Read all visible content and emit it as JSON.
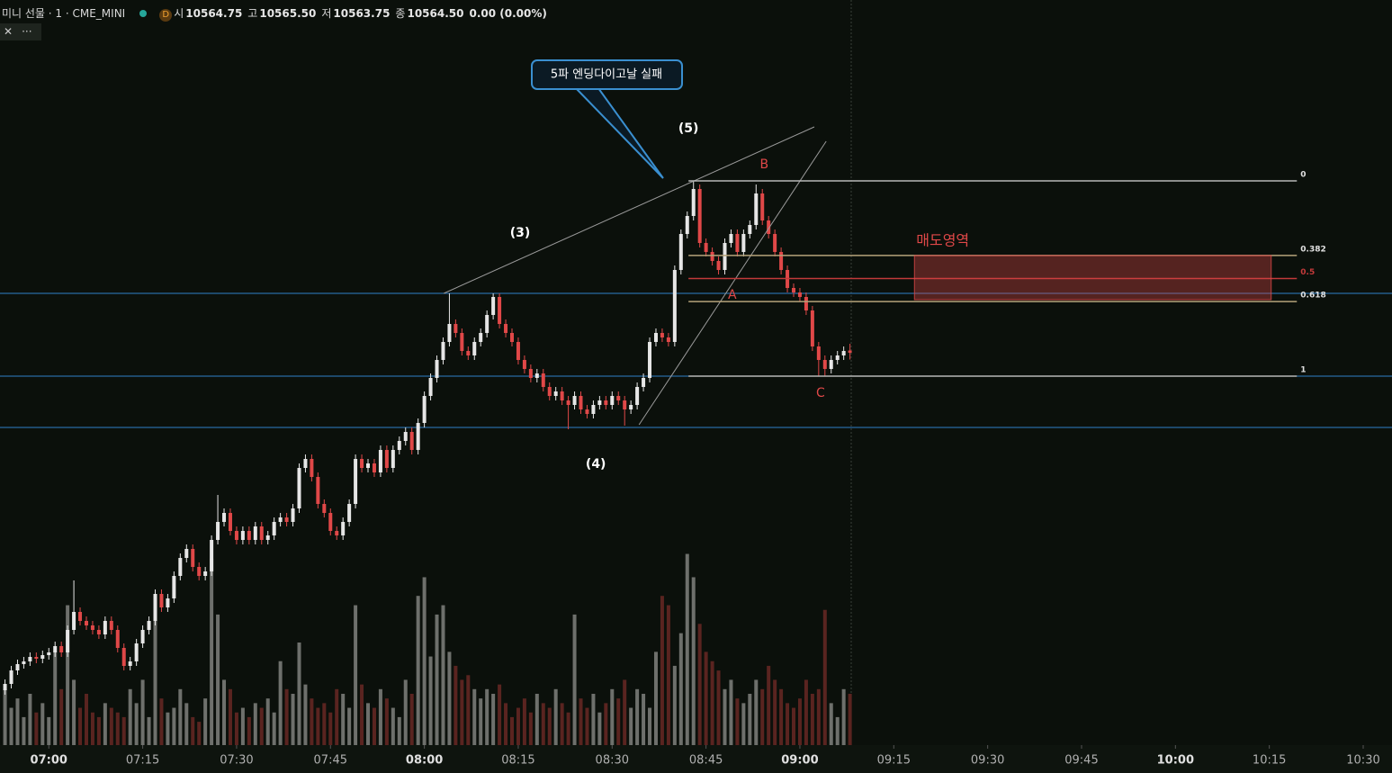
{
  "header": {
    "symbol": "미니 선물 · 1 · CME_MINI",
    "badge": "D",
    "ohlc": [
      {
        "label": "시",
        "value": "10564.75"
      },
      {
        "label": "고",
        "value": "10565.50"
      },
      {
        "label": "저",
        "value": "10563.75"
      },
      {
        "label": "종",
        "value": "10564.50"
      }
    ],
    "change": "0.00 (0.00%)"
  },
  "chart_data": {
    "type": "candlestick",
    "up_color": "#e6e6e6",
    "down_color": "#e04848",
    "vol_up_color": "#6e706c",
    "vol_down_color": "#5a2420",
    "xlim": [
      412.2,
      634.6
    ],
    "ylim": [
      10520.7,
      10603.7
    ],
    "vol_ylim": [
      0,
      220
    ],
    "xticks": [
      {
        "value": 420,
        "label": "07:00"
      },
      {
        "value": 435,
        "label": "07:15"
      },
      {
        "value": 450,
        "label": "07:30"
      },
      {
        "value": 465,
        "label": "07:45"
      },
      {
        "value": 480,
        "label": "08:00"
      },
      {
        "value": 495,
        "label": "08:15"
      },
      {
        "value": 510,
        "label": "08:30"
      },
      {
        "value": 525,
        "label": "08:45"
      },
      {
        "value": 540,
        "label": "09:00"
      },
      {
        "value": 555,
        "label": "09:15"
      },
      {
        "value": 570,
        "label": "09:30"
      },
      {
        "value": 585,
        "label": "09:45"
      },
      {
        "value": 600,
        "label": "10:00"
      },
      {
        "value": 615,
        "label": "10:15"
      },
      {
        "value": 630,
        "label": "10:30"
      }
    ],
    "x": [
      413,
      414,
      415,
      416,
      417,
      418,
      419,
      420,
      421,
      422,
      423,
      424,
      425,
      426,
      427,
      428,
      429,
      430,
      431,
      432,
      433,
      434,
      435,
      436,
      437,
      438,
      439,
      440,
      441,
      442,
      443,
      444,
      445,
      446,
      447,
      448,
      449,
      450,
      451,
      452,
      453,
      454,
      455,
      456,
      457,
      458,
      459,
      460,
      461,
      462,
      463,
      464,
      465,
      466,
      467,
      468,
      469,
      470,
      471,
      472,
      473,
      474,
      475,
      476,
      477,
      478,
      479,
      480,
      481,
      482,
      483,
      484,
      485,
      486,
      487,
      488,
      489,
      490,
      491,
      492,
      493,
      494,
      495,
      496,
      497,
      498,
      499,
      500,
      501,
      502,
      503,
      504,
      505,
      506,
      507,
      508,
      509,
      510,
      511,
      512,
      513,
      514,
      515,
      516,
      517,
      518,
      519,
      520,
      521,
      522,
      523,
      524,
      525,
      526,
      527,
      528,
      529,
      530,
      531,
      532,
      533,
      534,
      535,
      536,
      537,
      538,
      539,
      540,
      541,
      542,
      543,
      544,
      545,
      546,
      547,
      548
    ],
    "open": [
      10527.0,
      10527.7,
      10529.2,
      10529.9,
      10530.2,
      10530.7,
      10530.5,
      10530.9,
      10531.2,
      10531.9,
      10531.2,
      10533.7,
      10535.7,
      10534.7,
      10534.2,
      10533.7,
      10533.2,
      10534.7,
      10533.7,
      10531.7,
      10529.7,
      10530.2,
      10532.2,
      10533.7,
      10534.7,
      10537.7,
      10536.2,
      10537.2,
      10539.7,
      10541.7,
      10542.7,
      10540.7,
      10539.7,
      10540.2,
      10543.7,
      10545.7,
      10546.7,
      10544.7,
      10543.7,
      10544.7,
      10543.7,
      10545.2,
      10543.7,
      10544.2,
      10545.7,
      10546.2,
      10545.7,
      10547.2,
      10551.7,
      10552.7,
      10550.7,
      10547.7,
      10546.7,
      10544.7,
      10544.2,
      10545.7,
      10547.7,
      10552.7,
      10551.7,
      10552.2,
      10551.2,
      10553.7,
      10551.7,
      10553.7,
      10554.7,
      10555.7,
      10553.7,
      10556.7,
      10559.7,
      10561.7,
      10563.7,
      10565.7,
      10567.7,
      10566.7,
      10564.7,
      10564.2,
      10565.7,
      10566.7,
      10568.7,
      10570.7,
      10567.7,
      10566.7,
      10565.7,
      10563.7,
      10562.7,
      10561.7,
      10562.2,
      10560.7,
      10559.7,
      10560.2,
      10559.2,
      10558.7,
      10559.7,
      10558.2,
      10557.7,
      10558.7,
      10559.2,
      10558.7,
      10559.7,
      10559.2,
      10558.2,
      10558.7,
      10560.7,
      10561.7,
      10565.7,
      10566.7,
      10566.2,
      10565.7,
      10573.7,
      10577.7,
      10579.7,
      10582.7,
      10576.7,
      10575.7,
      10574.7,
      10573.7,
      10576.7,
      10577.7,
      10575.7,
      10577.7,
      10578.7,
      10582.2,
      10579.2,
      10577.7,
      10575.7,
      10573.7,
      10571.7,
      10571.2,
      10570.7,
      10569.2,
      10565.2,
      10563.7,
      10562.7,
      10563.7,
      10564.2,
      10564.75
    ],
    "high": [
      10528.2,
      10529.7,
      10530.4,
      10530.7,
      10531.2,
      10531.2,
      10531.4,
      10531.7,
      10532.4,
      10532.4,
      10534.2,
      10539.2,
      10536.2,
      10535.2,
      10534.7,
      10534.2,
      10535.2,
      10535.2,
      10534.2,
      10532.2,
      10530.7,
      10532.7,
      10534.2,
      10535.2,
      10538.2,
      10538.2,
      10537.7,
      10540.2,
      10542.2,
      10543.2,
      10543.2,
      10541.2,
      10540.7,
      10544.2,
      10548.7,
      10547.2,
      10547.2,
      10545.2,
      10545.2,
      10545.2,
      10545.7,
      10545.7,
      10544.7,
      10546.2,
      10546.7,
      10546.7,
      10547.7,
      10552.2,
      10553.2,
      10553.2,
      10551.2,
      10548.2,
      10547.2,
      10545.2,
      10546.2,
      10548.2,
      10553.2,
      10553.2,
      10552.7,
      10552.7,
      10554.2,
      10554.2,
      10554.2,
      10555.2,
      10556.2,
      10556.2,
      10557.2,
      10560.2,
      10562.2,
      10564.2,
      10566.2,
      10571.1,
      10568.2,
      10567.2,
      10565.2,
      10566.2,
      10567.2,
      10569.2,
      10571.1,
      10571.1,
      10568.2,
      10567.2,
      10566.2,
      10564.2,
      10563.2,
      10562.7,
      10562.7,
      10561.2,
      10560.7,
      10560.7,
      10559.7,
      10560.2,
      10560.2,
      10558.7,
      10559.2,
      10559.7,
      10559.7,
      10560.2,
      10560.2,
      10559.7,
      10559.2,
      10561.2,
      10562.2,
      10566.2,
      10567.2,
      10567.2,
      10566.7,
      10574.2,
      10578.2,
      10580.2,
      10583.6,
      10583.2,
      10577.2,
      10576.2,
      10575.2,
      10577.2,
      10578.2,
      10578.2,
      10578.2,
      10579.2,
      10583.2,
      10582.7,
      10579.7,
      10578.2,
      10576.2,
      10574.2,
      10572.2,
      10571.7,
      10571.2,
      10569.7,
      10565.7,
      10564.2,
      10564.2,
      10564.7,
      10565.2,
      10565.5
    ],
    "low": [
      10526.5,
      10527.2,
      10528.7,
      10529.4,
      10529.7,
      10530.0,
      10530.0,
      10530.4,
      10530.7,
      10530.7,
      10530.7,
      10533.2,
      10534.2,
      10533.7,
      10533.2,
      10532.7,
      10532.7,
      10533.2,
      10531.2,
      10529.2,
      10529.2,
      10529.7,
      10531.7,
      10533.2,
      10534.2,
      10535.7,
      10535.7,
      10536.7,
      10539.2,
      10541.2,
      10540.2,
      10539.2,
      10539.2,
      10539.7,
      10543.2,
      10545.2,
      10544.2,
      10543.2,
      10543.2,
      10543.2,
      10543.2,
      10543.2,
      10543.2,
      10543.7,
      10545.2,
      10545.2,
      10545.2,
      10546.7,
      10551.2,
      10550.2,
      10547.2,
      10546.2,
      10544.2,
      10543.7,
      10543.7,
      10545.2,
      10547.2,
      10551.2,
      10551.2,
      10550.7,
      10550.7,
      10551.2,
      10551.2,
      10553.2,
      10554.2,
      10553.2,
      10553.2,
      10556.2,
      10559.2,
      10561.2,
      10563.2,
      10565.2,
      10566.2,
      10564.2,
      10563.7,
      10563.7,
      10565.2,
      10566.2,
      10568.2,
      10567.2,
      10566.2,
      10565.2,
      10563.2,
      10562.2,
      10561.2,
      10561.2,
      10560.2,
      10559.2,
      10559.2,
      10558.7,
      10556.0,
      10558.2,
      10557.7,
      10557.2,
      10557.2,
      10558.2,
      10558.2,
      10558.2,
      10558.7,
      10556.4,
      10557.7,
      10558.2,
      10560.2,
      10561.2,
      10565.2,
      10565.7,
      10565.2,
      10565.2,
      10573.2,
      10577.2,
      10579.2,
      10576.2,
      10575.2,
      10574.2,
      10573.2,
      10573.2,
      10576.2,
      10575.2,
      10575.2,
      10577.2,
      10578.2,
      10578.7,
      10577.2,
      10575.2,
      10573.2,
      10571.2,
      10570.7,
      10570.2,
      10568.7,
      10564.7,
      10561.9,
      10561.9,
      10562.2,
      10563.2,
      10563.7,
      10563.75
    ],
    "close": [
      10527.7,
      10529.2,
      10529.9,
      10530.2,
      10530.7,
      10530.5,
      10530.9,
      10531.2,
      10531.9,
      10531.2,
      10533.7,
      10535.7,
      10534.7,
      10534.2,
      10533.7,
      10533.2,
      10534.7,
      10533.7,
      10531.7,
      10529.7,
      10530.2,
      10532.2,
      10533.7,
      10534.7,
      10537.7,
      10536.2,
      10537.2,
      10539.7,
      10541.7,
      10542.7,
      10540.7,
      10539.7,
      10540.2,
      10543.7,
      10545.7,
      10546.7,
      10544.7,
      10543.7,
      10544.7,
      10543.7,
      10545.2,
      10543.7,
      10544.2,
      10545.7,
      10546.2,
      10545.7,
      10547.2,
      10551.7,
      10552.7,
      10550.7,
      10547.7,
      10546.7,
      10544.7,
      10544.2,
      10545.7,
      10547.7,
      10552.7,
      10551.7,
      10552.2,
      10551.2,
      10553.7,
      10551.7,
      10553.7,
      10554.7,
      10555.7,
      10553.7,
      10556.7,
      10559.7,
      10561.7,
      10563.7,
      10565.7,
      10567.7,
      10566.7,
      10564.7,
      10564.2,
      10565.7,
      10566.7,
      10568.7,
      10570.7,
      10567.7,
      10566.7,
      10565.7,
      10563.7,
      10562.7,
      10561.7,
      10562.2,
      10560.7,
      10559.7,
      10560.2,
      10559.2,
      10558.7,
      10559.7,
      10558.2,
      10557.7,
      10558.7,
      10559.2,
      10558.7,
      10559.7,
      10559.2,
      10558.2,
      10558.7,
      10560.7,
      10561.7,
      10565.7,
      10566.7,
      10566.2,
      10565.7,
      10573.7,
      10577.7,
      10579.7,
      10582.7,
      10576.7,
      10575.7,
      10574.7,
      10573.7,
      10576.7,
      10577.7,
      10575.7,
      10577.7,
      10578.7,
      10582.2,
      10579.2,
      10577.7,
      10575.7,
      10573.7,
      10571.7,
      10571.2,
      10570.7,
      10569.2,
      10565.2,
      10563.7,
      10562.7,
      10563.7,
      10564.2,
      10564.7,
      10564.5
    ],
    "volume": [
      60,
      40,
      50,
      30,
      55,
      35,
      45,
      30,
      100,
      60,
      150,
      70,
      40,
      55,
      35,
      30,
      45,
      40,
      35,
      30,
      60,
      45,
      70,
      30,
      140,
      50,
      35,
      40,
      60,
      45,
      30,
      25,
      50,
      200,
      140,
      70,
      60,
      35,
      40,
      30,
      45,
      40,
      50,
      35,
      90,
      60,
      55,
      110,
      65,
      50,
      40,
      45,
      35,
      60,
      55,
      40,
      150,
      65,
      45,
      40,
      60,
      50,
      40,
      30,
      70,
      55,
      160,
      180,
      95,
      140,
      150,
      100,
      85,
      70,
      75,
      60,
      50,
      60,
      55,
      65,
      45,
      30,
      40,
      50,
      35,
      55,
      45,
      40,
      60,
      45,
      35,
      140,
      50,
      40,
      55,
      35,
      45,
      60,
      50,
      70,
      40,
      60,
      55,
      40,
      100,
      160,
      150,
      85,
      120,
      205,
      180,
      130,
      100,
      90,
      80,
      60,
      70,
      50,
      45,
      55,
      70,
      60,
      85,
      70,
      60,
      45,
      40,
      50,
      70,
      55,
      60,
      145,
      45,
      30,
      60,
      55
    ],
    "hlines": [
      10571.1,
      10561.9,
      10556.2
    ],
    "hline_color": "#2f7fc8",
    "trendlines": [
      {
        "x": [
          483.1,
          542.3
        ],
        "y": [
          10571.1,
          10589.6
        ]
      },
      {
        "x": [
          514.3,
          544.2
        ],
        "y": [
          10556.5,
          10588.0
        ]
      }
    ],
    "fib": {
      "high": 10583.6,
      "low": 10561.9,
      "x": [
        522.2,
        619.4
      ],
      "levels": [
        0,
        0.382,
        0.5,
        0.618,
        1
      ],
      "colors": [
        "#b8b8b8",
        "#b5a27a",
        "#c23a3a",
        "#b5a27a",
        "#b8b8b8"
      ]
    },
    "zone": {
      "label": "매도영역",
      "x": [
        558.3,
        615.3
      ],
      "y": [
        10575.3,
        10570.4
      ],
      "color": "#e04848"
    },
    "annotations": [
      {
        "text": "(3)",
        "x": 495.3,
        "y": 10577.8,
        "color": "#ffffff"
      },
      {
        "text": "(4)",
        "x": 507.4,
        "y": 10552.1,
        "color": "#ffffff"
      },
      {
        "text": "(5)",
        "x": 522.2,
        "y": 10589.4,
        "color": "#ffffff"
      },
      {
        "text": "B",
        "x": 534.3,
        "y": 10585.4,
        "color": "#e04848"
      },
      {
        "text": "A",
        "x": 529.2,
        "y": 10570.9,
        "color": "#e04848"
      },
      {
        "text": "C",
        "x": 543.3,
        "y": 10560.0,
        "color": "#e04848"
      }
    ],
    "callout": "5파 엔딩다이고날 실패"
  }
}
